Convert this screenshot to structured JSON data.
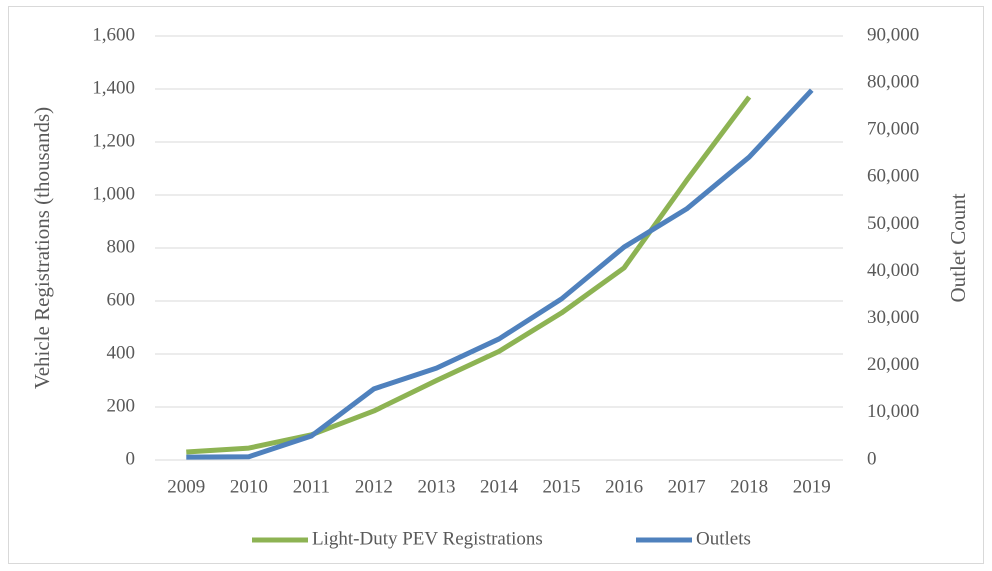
{
  "chart_data": {
    "type": "line",
    "categories": [
      "2009",
      "2010",
      "2011",
      "2012",
      "2013",
      "2014",
      "2015",
      "2016",
      "2017",
      "2018",
      "2019"
    ],
    "series": [
      {
        "name": "Light-Duty PEV Registrations",
        "color": "#8db353",
        "values": [
          30,
          45,
          95,
          185,
          300,
          410,
          555,
          725,
          1055,
          1370,
          null
        ]
      },
      {
        "name": "Outlets",
        "color": "#4f81bd",
        "axis": "y2",
        "values": [
          600,
          700,
          5100,
          15100,
          19500,
          25700,
          34200,
          45200,
          53300,
          64300,
          78500
        ]
      }
    ],
    "ylabel": "Vehicle Registrations (thousands)",
    "y2label": "Outlet Count",
    "ylim": [
      0,
      1600
    ],
    "yticks": [
      0,
      200,
      400,
      600,
      800,
      {
        "value": 1000,
        "label": "1,000"
      },
      {
        "value": 1200,
        "label": "1,200"
      },
      {
        "value": 1400,
        "label": "1,400"
      },
      {
        "value": 1600,
        "label": "1,600"
      }
    ],
    "y2lim": [
      0,
      90000
    ],
    "y2ticks": [
      0,
      {
        "value": 10000,
        "label": "10,000"
      },
      {
        "value": 20000,
        "label": "20,000"
      },
      {
        "value": 30000,
        "label": "30,000"
      },
      {
        "value": 40000,
        "label": "40,000"
      },
      {
        "value": 50000,
        "label": "50,000"
      },
      {
        "value": 60000,
        "label": "60,000"
      },
      {
        "value": 70000,
        "label": "70,000"
      },
      {
        "value": 80000,
        "label": "80,000"
      },
      {
        "value": 90000,
        "label": "90,000"
      }
    ],
    "grid": true,
    "legend": "bottom"
  }
}
